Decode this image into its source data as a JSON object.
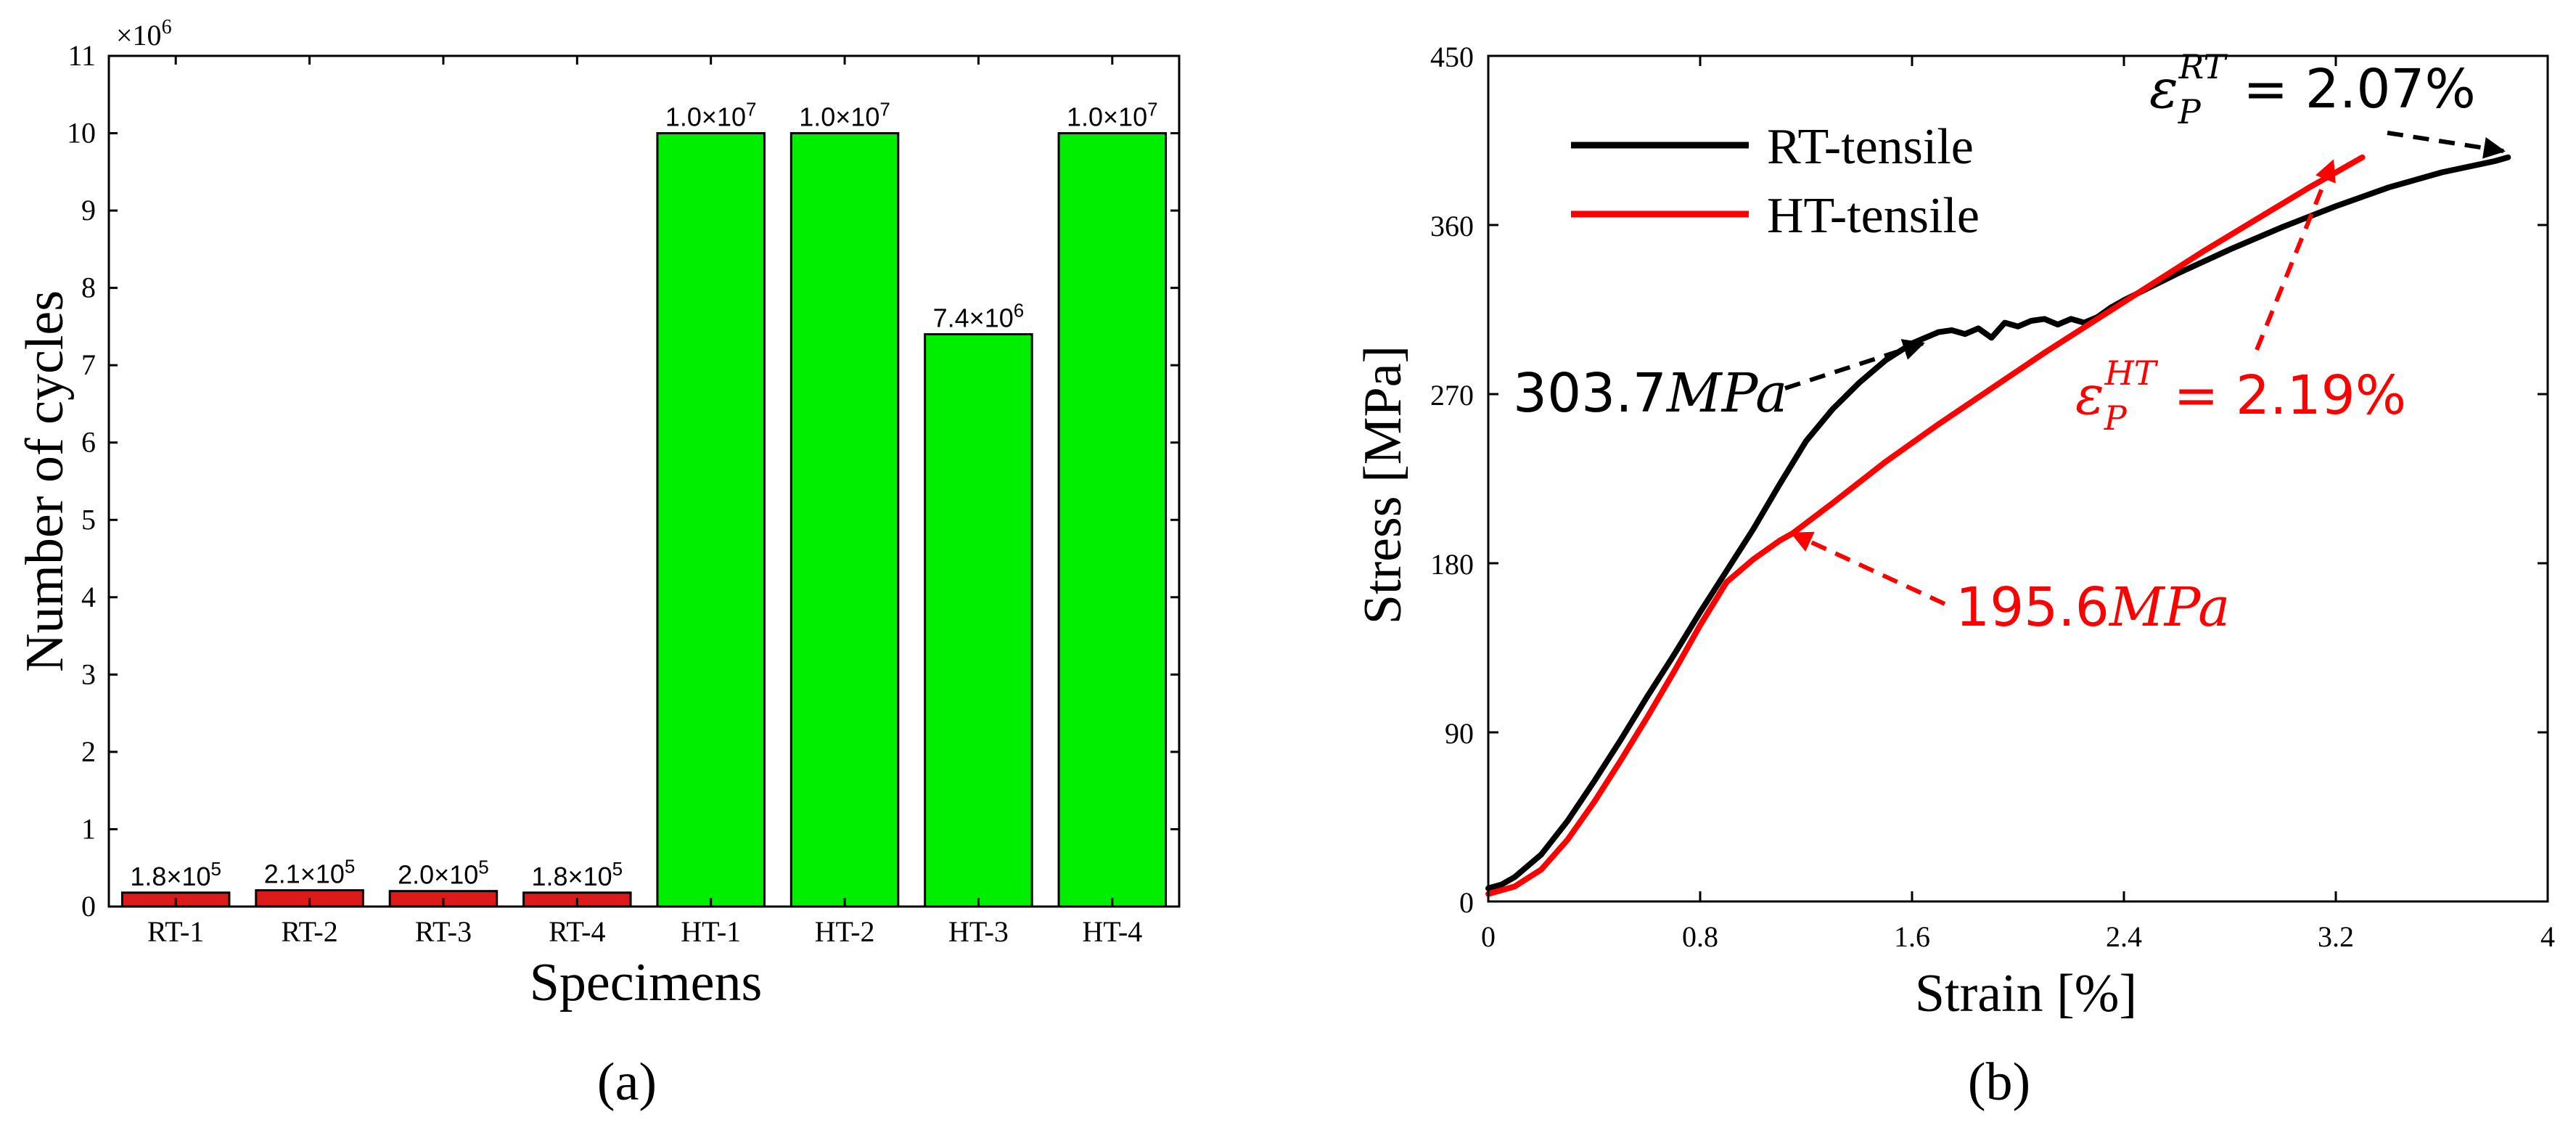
{
  "chart_data": [
    {
      "type": "bar",
      "panel_label": "(a)",
      "xlabel": "Specimens",
      "ylabel": "Number of cycles",
      "y_multiplier": "×10",
      "y_multiplier_exp": "6",
      "ylim": [
        0,
        11
      ],
      "yticks": [
        "0",
        "1",
        "2",
        "3",
        "4",
        "5",
        "6",
        "7",
        "8",
        "9",
        "10",
        "11"
      ],
      "categories": [
        "RT-1",
        "RT-2",
        "RT-3",
        "RT-4",
        "HT-1",
        "HT-2",
        "HT-3",
        "HT-4"
      ],
      "values": [
        0.18,
        0.21,
        0.2,
        0.18,
        10.0,
        10.0,
        7.4,
        10.0
      ],
      "colors": [
        "#dd1a1a",
        "#dd1a1a",
        "#dd1a1a",
        "#dd1a1a",
        "#00ee00",
        "#00ee00",
        "#00ee00",
        "#00ee00"
      ],
      "data_labels": [
        {
          "mant": "1.8×10",
          "exp": "5"
        },
        {
          "mant": "2.1×10",
          "exp": "5"
        },
        {
          "mant": "2.0×10",
          "exp": "5"
        },
        {
          "mant": "1.8×10",
          "exp": "5"
        },
        {
          "mant": "1.0×10",
          "exp": "7"
        },
        {
          "mant": "1.0×10",
          "exp": "7"
        },
        {
          "mant": "7.4×10",
          "exp": "6"
        },
        {
          "mant": "1.0×10",
          "exp": "7"
        }
      ],
      "grid": false
    },
    {
      "type": "line",
      "panel_label": "(b)",
      "xlabel": "Strain [%]",
      "ylabel": "Stress [MPa]",
      "xlim": [
        0,
        4
      ],
      "ylim": [
        0,
        450
      ],
      "xticks": [
        "0",
        "0.8",
        "1.6",
        "2.4",
        "3.2",
        "4"
      ],
      "yticks": [
        "0",
        "90",
        "180",
        "270",
        "360",
        "450"
      ],
      "legend_position": "top-left",
      "grid": false,
      "series": [
        {
          "name": "RT-tensile",
          "color": "#000000",
          "x": [
            0,
            0.05,
            0.1,
            0.2,
            0.3,
            0.4,
            0.5,
            0.6,
            0.7,
            0.8,
            0.9,
            1.0,
            1.1,
            1.2,
            1.3,
            1.4,
            1.5,
            1.6,
            1.65,
            1.7,
            1.75,
            1.8,
            1.85,
            1.9,
            1.95,
            2.0,
            2.05,
            2.1,
            2.15,
            2.2,
            2.25,
            2.3,
            2.35,
            2.4,
            2.6,
            2.8,
            3.0,
            3.2,
            3.4,
            3.6,
            3.8,
            3.85
          ],
          "y": [
            7,
            9,
            13,
            25,
            43,
            64,
            86,
            109,
            131,
            154,
            176,
            198,
            222,
            245,
            262,
            276,
            288,
            297,
            300,
            303,
            304,
            302,
            305,
            300,
            308,
            306,
            309,
            310,
            307,
            310,
            308,
            311,
            316,
            320,
            334,
            347,
            359,
            370,
            380,
            388,
            394,
            396
          ]
        },
        {
          "name": "HT-tensile",
          "color": "#ff0000",
          "x": [
            0,
            0.1,
            0.2,
            0.3,
            0.4,
            0.5,
            0.6,
            0.7,
            0.8,
            0.9,
            1.0,
            1.1,
            1.15,
            1.3,
            1.5,
            1.7,
            1.9,
            2.1,
            2.3,
            2.5,
            2.7,
            2.9,
            3.1,
            3.3
          ],
          "y": [
            4,
            8,
            17,
            33,
            53,
            75,
            98,
            122,
            147,
            170,
            182,
            192,
            196,
            212,
            234,
            254,
            273,
            292,
            310,
            328,
            346,
            363,
            380,
            396
          ]
        }
      ],
      "annotations": [
        {
          "id": "rt-yield",
          "value": "303.7",
          "unit": "MPa",
          "color": "#000000",
          "at": [
            1.6,
            295
          ]
        },
        {
          "id": "ht-yield",
          "value": "195.6",
          "unit": "MPa",
          "color": "#ff0000",
          "at": [
            1.13,
            196
          ]
        },
        {
          "id": "rt-strain",
          "sym": "ε",
          "sub": "P",
          "sup": "RT",
          "value": "= 2.07%",
          "color": "#000000",
          "at": [
            3.8,
            395
          ]
        },
        {
          "id": "ht-strain",
          "sym": "ε",
          "sub": "P",
          "sup": "HT",
          "value": "= 2.19%",
          "color": "#ff0000",
          "at": [
            3.28,
            395
          ]
        }
      ]
    }
  ]
}
